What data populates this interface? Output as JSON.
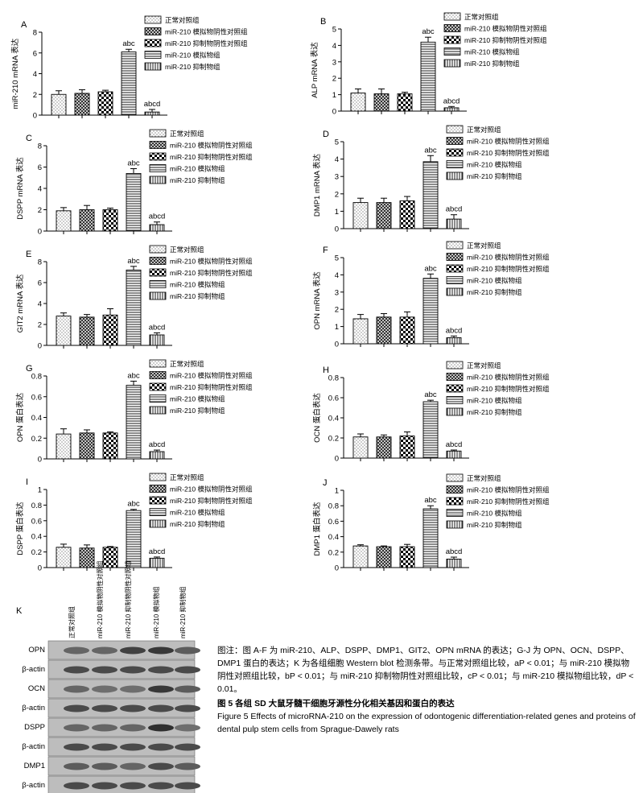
{
  "legend_labels": [
    "正常对照组",
    "miR-210 模拟物阴性对照组",
    "miR-210 抑制物阴性对照组",
    "miR-210 模拟物组",
    "miR-210 抑制物组"
  ],
  "sig_labels": [
    "",
    "",
    "",
    "abc",
    "abcd"
  ],
  "chart_data": [
    {
      "panel": "A",
      "type": "bar",
      "ylabel": "miR-210 mRNA 表达",
      "ylim": [
        0,
        8
      ],
      "yticks": [
        0,
        2,
        4,
        6,
        8
      ],
      "values": [
        2.0,
        2.1,
        2.25,
        6.1,
        0.3
      ],
      "errors": [
        0.35,
        0.35,
        0.15,
        0.25,
        0.25
      ]
    },
    {
      "panel": "B",
      "type": "bar",
      "ylabel": "ALP mRNA 表达",
      "ylim": [
        0,
        5
      ],
      "yticks": [
        0,
        1,
        2,
        3,
        4,
        5
      ],
      "values": [
        1.1,
        1.05,
        1.05,
        4.2,
        0.2
      ],
      "errors": [
        0.25,
        0.3,
        0.1,
        0.3,
        0.08
      ]
    },
    {
      "panel": "C",
      "type": "bar",
      "ylabel": "DSPP mRNA 表达",
      "ylim": [
        0,
        8
      ],
      "yticks": [
        0,
        2,
        4,
        6,
        8
      ],
      "values": [
        1.9,
        2.0,
        2.0,
        5.4,
        0.6
      ],
      "errors": [
        0.3,
        0.4,
        0.15,
        0.45,
        0.25
      ]
    },
    {
      "panel": "D",
      "type": "bar",
      "ylabel": "DMP1 mRNA 表达",
      "ylim": [
        0,
        5
      ],
      "yticks": [
        0,
        1,
        2,
        3,
        4,
        5
      ],
      "values": [
        1.5,
        1.5,
        1.6,
        3.85,
        0.55
      ],
      "errors": [
        0.25,
        0.25,
        0.25,
        0.35,
        0.25
      ]
    },
    {
      "panel": "E",
      "type": "bar",
      "ylabel": "GIT2 mRNA 表达",
      "ylim": [
        0,
        8
      ],
      "yticks": [
        0,
        2,
        4,
        6,
        8
      ],
      "values": [
        2.8,
        2.7,
        2.9,
        7.2,
        1.0
      ],
      "errors": [
        0.3,
        0.25,
        0.6,
        0.35,
        0.2
      ]
    },
    {
      "panel": "F",
      "type": "bar",
      "ylabel": "OPN mRNA 表达",
      "ylim": [
        0,
        5
      ],
      "yticks": [
        0,
        1,
        2,
        3,
        4,
        5
      ],
      "values": [
        1.45,
        1.55,
        1.55,
        3.8,
        0.35
      ],
      "errors": [
        0.25,
        0.2,
        0.3,
        0.25,
        0.1
      ]
    },
    {
      "panel": "G",
      "type": "bar",
      "ylabel": "OPN 蛋白表达",
      "ylim": [
        0,
        0.8
      ],
      "yticks": [
        0,
        0.2,
        0.4,
        0.6,
        0.8
      ],
      "values": [
        0.24,
        0.25,
        0.25,
        0.71,
        0.07
      ],
      "errors": [
        0.05,
        0.03,
        0.01,
        0.04,
        0.015
      ]
    },
    {
      "panel": "H",
      "type": "bar",
      "ylabel": "OCN 蛋白表达",
      "ylim": [
        0,
        0.8
      ],
      "yticks": [
        0,
        0.2,
        0.4,
        0.6,
        0.8
      ],
      "values": [
        0.21,
        0.21,
        0.22,
        0.56,
        0.07
      ],
      "errors": [
        0.03,
        0.02,
        0.04,
        0.015,
        0.01
      ]
    },
    {
      "panel": "I",
      "type": "bar",
      "ylabel": "DSPP 蛋白表达",
      "ylim": [
        0,
        1.0
      ],
      "yticks": [
        0,
        0.2,
        0.4,
        0.6,
        0.8,
        1.0
      ],
      "values": [
        0.26,
        0.25,
        0.26,
        0.73,
        0.12
      ],
      "errors": [
        0.04,
        0.04,
        0.01,
        0.015,
        0.015
      ]
    },
    {
      "panel": "J",
      "type": "bar",
      "ylabel": "DMP1 蛋白表达",
      "ylim": [
        0,
        1.0
      ],
      "yticks": [
        0,
        0.2,
        0.4,
        0.6,
        0.8,
        1.0
      ],
      "values": [
        0.28,
        0.27,
        0.27,
        0.76,
        0.11
      ],
      "errors": [
        0.015,
        0.01,
        0.03,
        0.04,
        0.025
      ]
    }
  ],
  "western_blot": {
    "panel": "K",
    "lane_labels": [
      "正常对照组",
      "miR-210 模拟物阴性对照组",
      "miR-210 抑制物阴性对照组",
      "miR-210 模拟物组",
      "miR-210 抑制物组"
    ],
    "rows": [
      {
        "label": "OPN",
        "intensity": [
          0.55,
          0.55,
          0.75,
          0.8,
          0.6
        ]
      },
      {
        "label": "β-actin",
        "intensity": [
          0.7,
          0.7,
          0.7,
          0.7,
          0.7
        ]
      },
      {
        "label": "OCN",
        "intensity": [
          0.55,
          0.5,
          0.5,
          0.8,
          0.6
        ]
      },
      {
        "label": "β-actin",
        "intensity": [
          0.7,
          0.7,
          0.7,
          0.7,
          0.7
        ]
      },
      {
        "label": "DSPP",
        "intensity": [
          0.55,
          0.55,
          0.55,
          0.85,
          0.5
        ]
      },
      {
        "label": "β-actin",
        "intensity": [
          0.7,
          0.7,
          0.7,
          0.7,
          0.7
        ]
      },
      {
        "label": "DMP1",
        "intensity": [
          0.6,
          0.6,
          0.55,
          0.7,
          0.6
        ]
      },
      {
        "label": "β-actin",
        "intensity": [
          0.7,
          0.7,
          0.7,
          0.7,
          0.7
        ]
      }
    ]
  },
  "caption": {
    "note": "图注：图 A-F 为 miR-210、ALP、DSPP、DMP1、GIT2、OPN mRNA 的表达；G-J 为 OPN、OCN、DSPP、DMP1 蛋白的表达；K 为各组细胞 Western blot 检测条带。与正常对照组比较，aP < 0.01；与 miR-210 模拟物阴性对照组比较，bP < 0.01；与 miR-210 抑制物阴性对照组比较，cP < 0.01；与 miR-210 模拟物组比较，dP < 0.01。",
    "title_cn": "图 5  各组 SD 大鼠牙髓干细胞牙源性分化相关基因和蛋白的表达",
    "title_en": "Figure 5   Effects of microRNA-210 on the expression of odontogenic differentiation-related genes and proteins of dental pulp stem cells from Sprague-Dawely rats"
  }
}
